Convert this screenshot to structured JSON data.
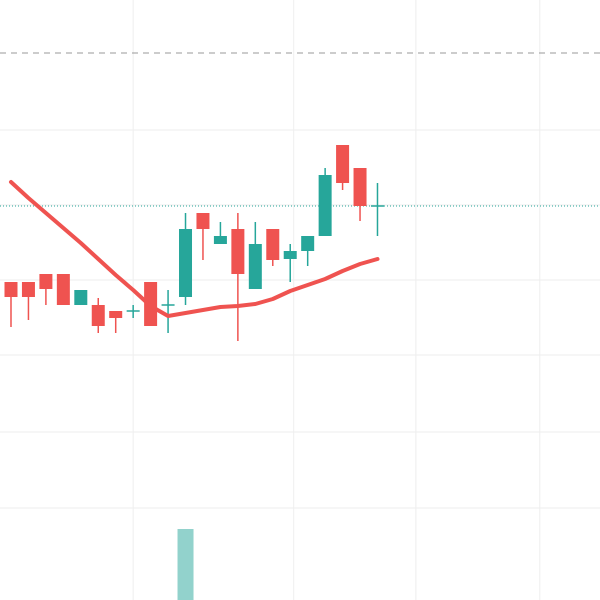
{
  "chart_data": {
    "type": "candlestick",
    "open": [
      318,
      318,
      326,
      326,
      295,
      295,
      289,
      289,
      318,
      295,
      303,
      387,
      356,
      371,
      311,
      371,
      341,
      349,
      364,
      455,
      432,
      394
    ],
    "high": [
      318,
      318,
      326,
      326,
      310,
      302,
      289,
      295,
      318,
      310,
      387,
      387,
      378,
      387,
      378,
      371,
      356,
      364,
      432,
      455,
      432,
      417
    ],
    "low": [
      273,
      280,
      295,
      295,
      295,
      267,
      267,
      282,
      274,
      267,
      295,
      340,
      356,
      259,
      311,
      334,
      318,
      334,
      364,
      410,
      379,
      364
    ],
    "close": [
      303,
      303,
      311,
      295,
      310,
      274,
      282,
      289,
      274,
      295,
      371,
      371,
      364,
      326,
      356,
      340,
      349,
      364,
      425,
      417,
      394,
      394
    ],
    "moving_average": {
      "color": "#ef5350",
      "values": [
        418,
        402,
        387,
        372,
        357,
        341,
        325,
        310,
        294,
        284,
        287,
        290,
        293,
        294,
        296,
        301,
        309,
        315,
        321,
        329,
        336,
        341
      ]
    },
    "volume": {
      "color": "#26a69a",
      "values": [
        null,
        null,
        null,
        null,
        null,
        null,
        null,
        null,
        null,
        null,
        71,
        null,
        null,
        null,
        null,
        null,
        null,
        null,
        null,
        null,
        null,
        null
      ]
    },
    "up_color": "#26a69a",
    "down_color": "#ef5350",
    "reference_lines": [
      547
    ],
    "xlim": [
      -0.63,
      33.75
    ],
    "xticks": [
      7,
      16.2,
      23.2,
      30.3
    ],
    "ylim": [
      0,
      600
    ],
    "yticks": [
      470,
      395,
      320,
      245,
      168,
      92
    ],
    "y2lim": [
      0,
      600
    ],
    "grid": true
  }
}
